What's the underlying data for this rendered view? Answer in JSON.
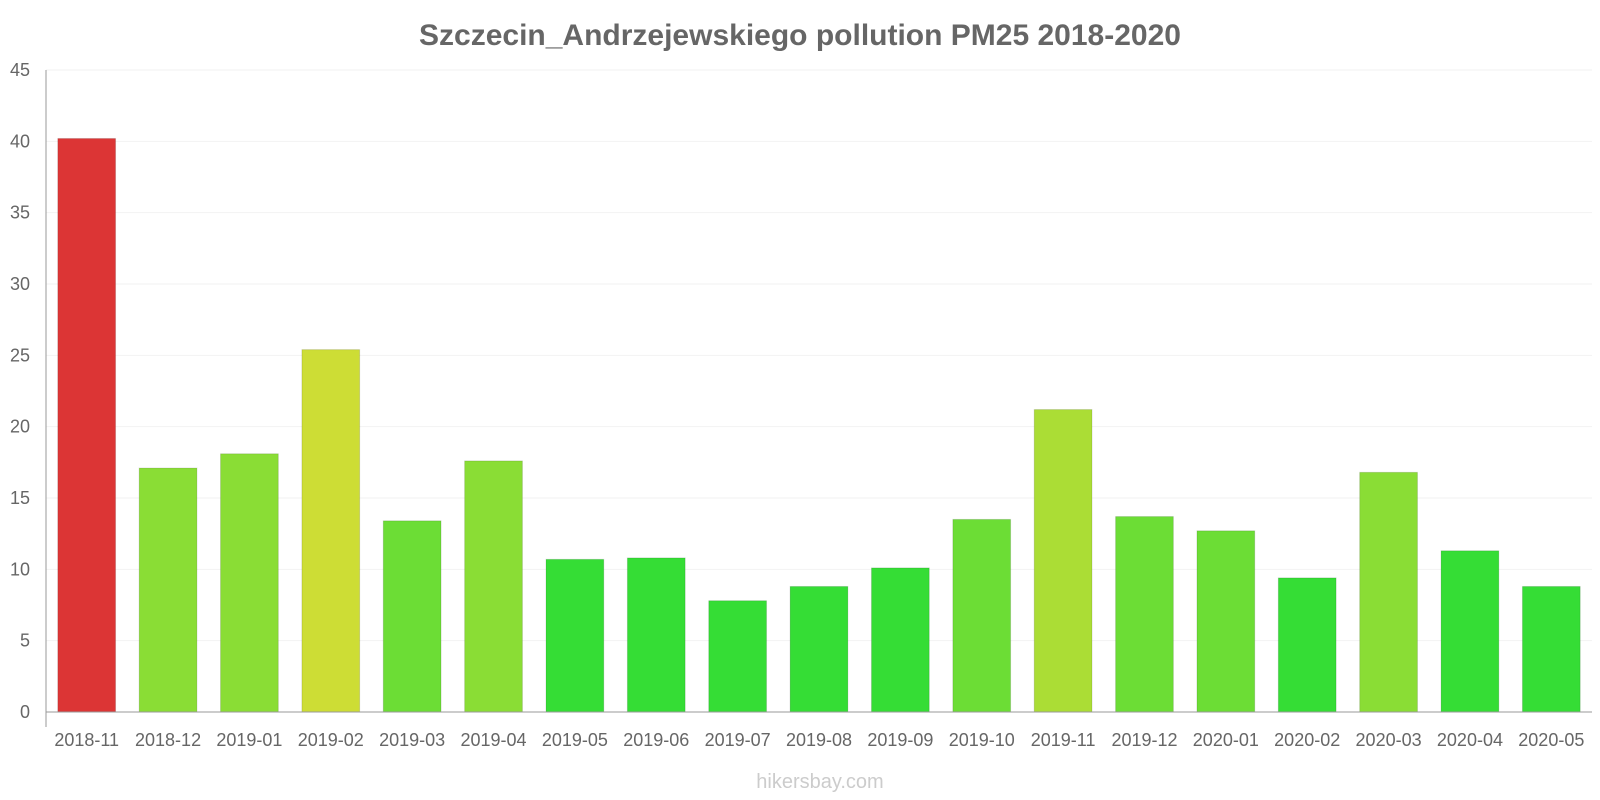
{
  "chart_data": {
    "type": "bar",
    "title": "Szczecin_Andrzejewskiego pollution PM25 2018-2020",
    "xlabel": "",
    "ylabel": "",
    "ylim": [
      0,
      45
    ],
    "yticks": [
      "0",
      "5",
      "10",
      "15",
      "20",
      "25",
      "30",
      "35",
      "40",
      "45"
    ],
    "categories": [
      "2018-11",
      "2018-12",
      "2019-01",
      "2019-02",
      "2019-03",
      "2019-04",
      "2019-05",
      "2019-06",
      "2019-07",
      "2019-08",
      "2019-09",
      "2019-10",
      "2019-11",
      "2019-12",
      "2020-01",
      "2020-02",
      "2020-03",
      "2020-04",
      "2020-05"
    ],
    "values": [
      40.2,
      17.1,
      18.1,
      25.4,
      13.4,
      17.6,
      10.7,
      10.8,
      7.8,
      8.8,
      10.1,
      13.5,
      21.2,
      13.7,
      12.7,
      9.4,
      16.8,
      11.3,
      8.8
    ],
    "colors": [
      "#dc3535",
      "#8add35",
      "#8add35",
      "#cddd35",
      "#6cdd35",
      "#8add35",
      "#35dd35",
      "#35dd35",
      "#35dd35",
      "#35dd35",
      "#35dd35",
      "#6cdd35",
      "#abdd35",
      "#6cdd35",
      "#6cdd35",
      "#35dd35",
      "#8add35",
      "#35dd35",
      "#35dd35"
    ],
    "grid": true,
    "legend": "none"
  },
  "watermark": "hikersbay.com"
}
